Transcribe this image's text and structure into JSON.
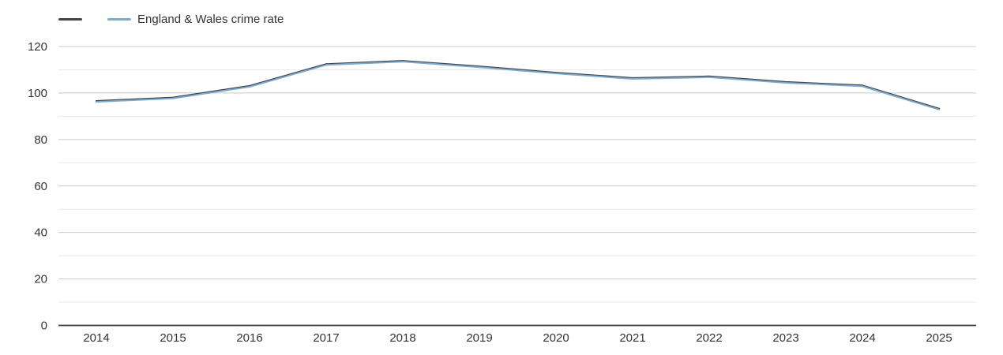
{
  "legend": {
    "items": [
      {
        "label": "",
        "color": "#474044"
      },
      {
        "label": "England & Wales crime rate",
        "color": "#7cabce"
      }
    ]
  },
  "colors": {
    "area_series": "#474044",
    "ew_series": "#7cabce",
    "axis_line": "#3b3b3b",
    "major_gridline": "#c9c9c9",
    "minor_gridline": "#e8e8e8",
    "label_text": "#333333",
    "background": "#ffffff"
  },
  "chart_data": {
    "type": "line",
    "x": [
      2014,
      2015,
      2016,
      2017,
      2018,
      2019,
      2020,
      2021,
      2022,
      2023,
      2024,
      2025
    ],
    "series": [
      {
        "name": "",
        "values": [
          96.5,
          98.0,
          103.0,
          112.4,
          113.8,
          111.4,
          108.7,
          106.4,
          107.1,
          104.7,
          103.2,
          93.2
        ]
      },
      {
        "name": "England & Wales crime rate",
        "values": [
          96.5,
          98.0,
          103.0,
          112.4,
          113.8,
          111.4,
          108.7,
          106.4,
          107.1,
          104.7,
          103.2,
          93.2
        ]
      }
    ],
    "xlabel": "",
    "ylabel": "",
    "ylim": [
      0,
      120
    ],
    "yticks_major": [
      0,
      20,
      40,
      60,
      80,
      100,
      120
    ],
    "yticks_minor": [
      10,
      30,
      50,
      70,
      90,
      110
    ],
    "grid": true,
    "legend_position": "top-left"
  }
}
